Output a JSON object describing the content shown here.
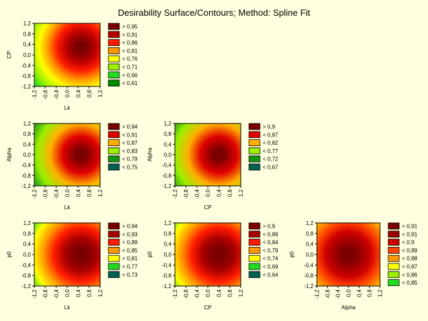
{
  "title": "Desirability Surface/Contours; Method: Spline Fit",
  "tick_labels": [
    "-1,2",
    "-0,8",
    "-0,4",
    "0,0",
    "0,4",
    "0,8",
    "1,2"
  ],
  "chart_data": [
    {
      "type": "heatmap",
      "x_factor": "Lk",
      "y_factor": "CP",
      "xlabel": "Lk",
      "ylabel": "CP",
      "xlim": [
        -1.2,
        1.2
      ],
      "ylim": [
        -1.2,
        1.2
      ],
      "peak": [
        0.5,
        0.3
      ],
      "legend": [
        {
          "label": "> 0,95",
          "color": "#7A0000"
        },
        {
          "label": "< 0,91",
          "color": "#B80000"
        },
        {
          "label": "< 0,86",
          "color": "#FF1A00"
        },
        {
          "label": "< 0,81",
          "color": "#FF9800"
        },
        {
          "label": "< 0,76",
          "color": "#FFFF00"
        },
        {
          "label": "< 0,71",
          "color": "#9AF000"
        },
        {
          "label": "< 0,66",
          "color": "#21DB21"
        },
        {
          "label": "< 0,61",
          "color": "#008A00"
        }
      ]
    },
    {
      "type": "heatmap",
      "x_factor": "Lk",
      "y_factor": "Alpha",
      "xlabel": "Lk",
      "ylabel": "Alpha",
      "xlim": [
        -1.2,
        1.2
      ],
      "ylim": [
        -1.2,
        1.2
      ],
      "peak": [
        0.5,
        0.0
      ],
      "legend": [
        {
          "label": "> 0,94",
          "color": "#7A0000"
        },
        {
          "label": "< 0,91",
          "color": "#E00000"
        },
        {
          "label": "< 0,87",
          "color": "#FFB000"
        },
        {
          "label": "< 0,83",
          "color": "#9AF000"
        },
        {
          "label": "< 0,79",
          "color": "#149614"
        },
        {
          "label": "< 0,75",
          "color": "#006050"
        }
      ]
    },
    {
      "type": "heatmap",
      "x_factor": "CP",
      "y_factor": "Alpha",
      "xlabel": "CP",
      "ylabel": "Alpha",
      "xlim": [
        -1.2,
        1.2
      ],
      "ylim": [
        -1.2,
        1.2
      ],
      "peak": [
        0.4,
        0.0
      ],
      "legend": [
        {
          "label": "> 0,9",
          "color": "#7A0000"
        },
        {
          "label": "< 0,87",
          "color": "#E00000"
        },
        {
          "label": "< 0,82",
          "color": "#FFB000"
        },
        {
          "label": "< 0,77",
          "color": "#9AF000"
        },
        {
          "label": "< 0,72",
          "color": "#149614"
        },
        {
          "label": "< 0,67",
          "color": "#006050"
        }
      ]
    },
    {
      "type": "heatmap",
      "x_factor": "Lk",
      "y_factor": "p0",
      "xlabel": "Lk",
      "ylabel": "p0",
      "xlim": [
        -1.2,
        1.2
      ],
      "ylim": [
        -1.2,
        1.2
      ],
      "peak": [
        0.5,
        0.0
      ],
      "legend": [
        {
          "label": "> 0,94",
          "color": "#7A0000"
        },
        {
          "label": "< 0,93",
          "color": "#A80000"
        },
        {
          "label": "< 0,89",
          "color": "#FF1A00"
        },
        {
          "label": "< 0,85",
          "color": "#FF9800"
        },
        {
          "label": "< 0,81",
          "color": "#FFFF00"
        },
        {
          "label": "< 0,77",
          "color": "#21DB21"
        },
        {
          "label": "< 0,73",
          "color": "#006050"
        }
      ]
    },
    {
      "type": "heatmap",
      "x_factor": "CP",
      "y_factor": "p0",
      "xlabel": "CP",
      "ylabel": "p0",
      "xlim": [
        -1.2,
        1.2
      ],
      "ylim": [
        -1.2,
        1.2
      ],
      "peak": [
        0.4,
        0.0
      ],
      "legend": [
        {
          "label": "> 0,9",
          "color": "#7A0000"
        },
        {
          "label": "< 0,89",
          "color": "#A80000"
        },
        {
          "label": "< 0,84",
          "color": "#FF1A00"
        },
        {
          "label": "< 0,79",
          "color": "#FF9800"
        },
        {
          "label": "< 0,74",
          "color": "#FFFF00"
        },
        {
          "label": "< 0,69",
          "color": "#21DB21"
        },
        {
          "label": "< 0,64",
          "color": "#006050"
        }
      ]
    },
    {
      "type": "heatmap",
      "x_factor": "Alpha",
      "y_factor": "p0",
      "xlabel": "Alpha",
      "ylabel": "p0",
      "xlim": [
        -1.2,
        1.2
      ],
      "ylim": [
        -1.2,
        1.2
      ],
      "peak": [
        0.0,
        0.0
      ],
      "legend": [
        {
          "label": "> 0,91",
          "color": "#7A0000"
        },
        {
          "label": "< 0,91",
          "color": "#A00000"
        },
        {
          "label": "< 0,9",
          "color": "#D00000"
        },
        {
          "label": "< 0,89",
          "color": "#FF4000"
        },
        {
          "label": "< 0,88",
          "color": "#FF9800"
        },
        {
          "label": "< 0,87",
          "color": "#FFFF00"
        },
        {
          "label": "< 0,86",
          "color": "#9AF000"
        },
        {
          "label": "< 0,85",
          "color": "#21DB21"
        }
      ]
    }
  ]
}
